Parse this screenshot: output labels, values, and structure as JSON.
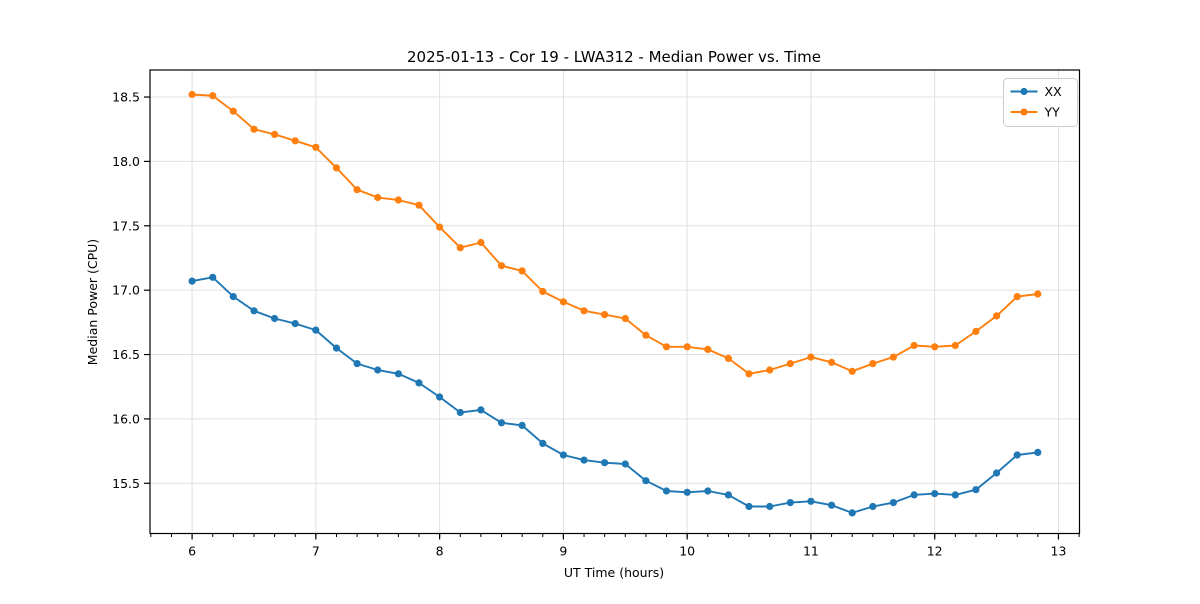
{
  "chart_data": {
    "type": "line",
    "title": "2025-01-13 - Cor 19 - LWA312 - Median Power vs. Time",
    "xlabel": "UT Time (hours)",
    "ylabel": "Median Power (CPU)",
    "xlim": [
      5.66,
      13.17
    ],
    "ylim": [
      15.11,
      18.71
    ],
    "x_ticks": [
      6,
      7,
      8,
      9,
      10,
      11,
      12,
      13
    ],
    "x_tick_labels": [
      "6",
      "7",
      "8",
      "9",
      "10",
      "11",
      "12",
      "13"
    ],
    "x_minor_tick_step": 0.16667,
    "y_ticks": [
      15.5,
      16.0,
      16.5,
      17.0,
      17.5,
      18.0,
      18.5
    ],
    "y_tick_labels": [
      "15.5",
      "16.0",
      "16.5",
      "17.0",
      "17.5",
      "18.0",
      "18.5"
    ],
    "grid": true,
    "grid_color": "#e0e0e0",
    "legend_position": "upper right",
    "x": [
      6.0,
      6.1667,
      6.3333,
      6.5,
      6.6667,
      6.8333,
      7.0,
      7.1667,
      7.3333,
      7.5,
      7.6667,
      7.8333,
      8.0,
      8.1667,
      8.3333,
      8.5,
      8.6667,
      8.8333,
      9.0,
      9.1667,
      9.3333,
      9.5,
      9.6667,
      9.8333,
      10.0,
      10.1667,
      10.3333,
      10.5,
      10.6667,
      10.8333,
      11.0,
      11.1667,
      11.3333,
      11.5,
      11.6667,
      11.8333,
      12.0,
      12.1667,
      12.3333,
      12.5,
      12.6667,
      12.8333
    ],
    "series": [
      {
        "name": "XX",
        "color": "#1f77b4",
        "values": [
          17.07,
          17.1,
          16.95,
          16.84,
          16.78,
          16.74,
          16.69,
          16.55,
          16.43,
          16.38,
          16.35,
          16.28,
          16.17,
          16.05,
          16.07,
          15.97,
          15.95,
          15.81,
          15.72,
          15.68,
          15.66,
          15.65,
          15.52,
          15.44,
          15.43,
          15.44,
          15.41,
          15.32,
          15.32,
          15.35,
          15.36,
          15.33,
          15.27,
          15.32,
          15.35,
          15.41,
          15.42,
          15.41,
          15.45,
          15.58,
          15.72,
          15.74
        ]
      },
      {
        "name": "YY",
        "color": "#ff7f0e",
        "values": [
          18.52,
          18.51,
          18.39,
          18.25,
          18.21,
          18.16,
          18.11,
          17.95,
          17.78,
          17.72,
          17.7,
          17.66,
          17.49,
          17.33,
          17.37,
          17.19,
          17.15,
          16.99,
          16.91,
          16.84,
          16.81,
          16.78,
          16.65,
          16.56,
          16.56,
          16.54,
          16.47,
          16.35,
          16.38,
          16.43,
          16.48,
          16.44,
          16.37,
          16.43,
          16.48,
          16.57,
          16.56,
          16.57,
          16.68,
          16.8,
          16.95,
          16.97
        ]
      }
    ]
  }
}
